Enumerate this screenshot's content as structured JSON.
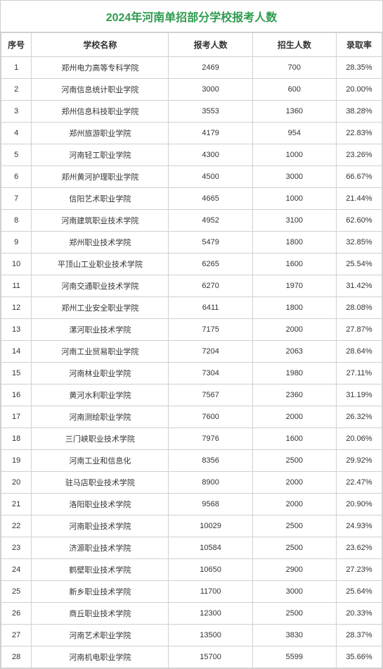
{
  "title_text": "2024年河南单招部分学校报考人数",
  "title_color": "#2e9b4f",
  "columns": [
    "序号",
    "学校名称",
    "报考人数",
    "招生人数",
    "录取率"
  ],
  "rows": [
    {
      "idx": "1",
      "name": "郑州电力高等专科学院",
      "apply": "2469",
      "plan": "700",
      "rate": "28.35%"
    },
    {
      "idx": "2",
      "name": "河南信息统计职业学院",
      "apply": "3000",
      "plan": "600",
      "rate": "20.00%"
    },
    {
      "idx": "3",
      "name": "郑州信息科技职业学院",
      "apply": "3553",
      "plan": "1360",
      "rate": "38.28%"
    },
    {
      "idx": "4",
      "name": "郑州旅游职业学院",
      "apply": "4179",
      "plan": "954",
      "rate": "22.83%"
    },
    {
      "idx": "5",
      "name": "河南轻工职业学院",
      "apply": "4300",
      "plan": "1000",
      "rate": "23.26%"
    },
    {
      "idx": "6",
      "name": "郑州黄河护理职业学院",
      "apply": "4500",
      "plan": "3000",
      "rate": "66.67%"
    },
    {
      "idx": "7",
      "name": "信阳艺术职业学院",
      "apply": "4665",
      "plan": "1000",
      "rate": "21.44%"
    },
    {
      "idx": "8",
      "name": "河南建筑职业技术学院",
      "apply": "4952",
      "plan": "3100",
      "rate": "62.60%"
    },
    {
      "idx": "9",
      "name": "郑州职业技术学院",
      "apply": "5479",
      "plan": "1800",
      "rate": "32.85%"
    },
    {
      "idx": "10",
      "name": "平顶山工业职业技术学院",
      "apply": "6265",
      "plan": "1600",
      "rate": "25.54%"
    },
    {
      "idx": "11",
      "name": "河南交通职业技术学院",
      "apply": "6270",
      "plan": "1970",
      "rate": "31.42%"
    },
    {
      "idx": "12",
      "name": "郑州工业安全职业学院",
      "apply": "6411",
      "plan": "1800",
      "rate": "28.08%"
    },
    {
      "idx": "13",
      "name": "漯河职业技术学院",
      "apply": "7175",
      "plan": "2000",
      "rate": "27.87%"
    },
    {
      "idx": "14",
      "name": "河南工业贸易职业学院",
      "apply": "7204",
      "plan": "2063",
      "rate": "28.64%"
    },
    {
      "idx": "15",
      "name": "河南林业职业学院",
      "apply": "7304",
      "plan": "1980",
      "rate": "27.11%"
    },
    {
      "idx": "16",
      "name": "黄河水利职业学院",
      "apply": "7567",
      "plan": "2360",
      "rate": "31.19%"
    },
    {
      "idx": "17",
      "name": "河南测绘职业学院",
      "apply": "7600",
      "plan": "2000",
      "rate": "26.32%"
    },
    {
      "idx": "18",
      "name": "三门峡职业技术学院",
      "apply": "7976",
      "plan": "1600",
      "rate": "20.06%"
    },
    {
      "idx": "19",
      "name": "河南工业和信息化",
      "apply": "8356",
      "plan": "2500",
      "rate": "29.92%"
    },
    {
      "idx": "20",
      "name": "驻马店职业技术学院",
      "apply": "8900",
      "plan": "2000",
      "rate": "22.47%"
    },
    {
      "idx": "21",
      "name": "洛阳职业技术学院",
      "apply": "9568",
      "plan": "2000",
      "rate": "20.90%"
    },
    {
      "idx": "22",
      "name": "河南职业技术学院",
      "apply": "10029",
      "plan": "2500",
      "rate": "24.93%"
    },
    {
      "idx": "23",
      "name": "济源职业技术学院",
      "apply": "10584",
      "plan": "2500",
      "rate": "23.62%"
    },
    {
      "idx": "24",
      "name": "鹤壁职业技术学院",
      "apply": "10650",
      "plan": "2900",
      "rate": "27.23%"
    },
    {
      "idx": "25",
      "name": "新乡职业技术学院",
      "apply": "11700",
      "plan": "3000",
      "rate": "25.64%"
    },
    {
      "idx": "26",
      "name": "商丘职业技术学院",
      "apply": "12300",
      "plan": "2500",
      "rate": "20.33%"
    },
    {
      "idx": "27",
      "name": "河南艺术职业学院",
      "apply": "13500",
      "plan": "3830",
      "rate": "28.37%"
    },
    {
      "idx": "28",
      "name": "河南机电职业学院",
      "apply": "15700",
      "plan": "5599",
      "rate": "35.66%"
    }
  ]
}
